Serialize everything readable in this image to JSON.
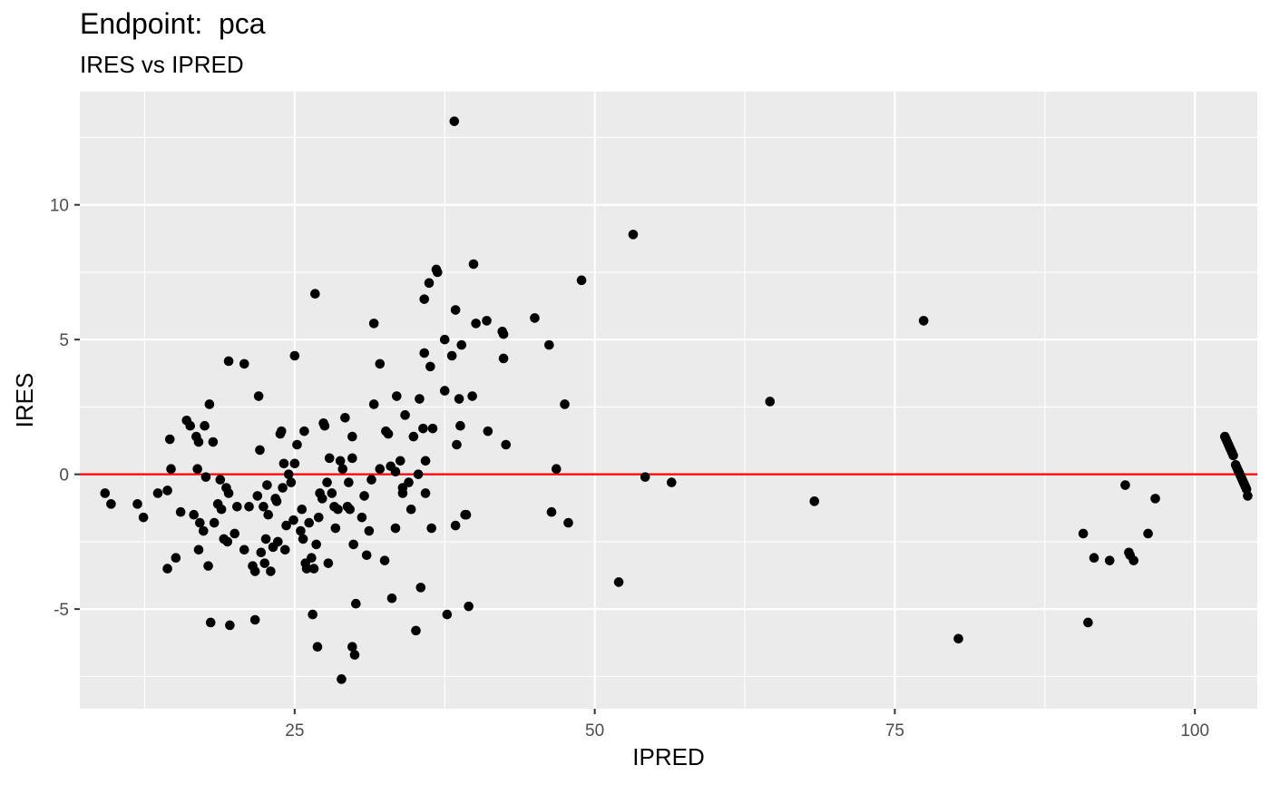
{
  "chart_data": {
    "type": "scatter",
    "title": "Endpoint:  pca",
    "subtitle": "IRES vs IPRED",
    "xlabel": "IPRED",
    "ylabel": "IRES",
    "xlim": [
      7.1,
      105.2
    ],
    "ylim": [
      -8.7,
      14.2
    ],
    "xticks": [
      25,
      50,
      75,
      100
    ],
    "xtick_labels": [
      "25",
      "50",
      "75",
      "100"
    ],
    "yticks": [
      -5,
      0,
      5,
      10
    ],
    "ytick_labels": [
      "-5",
      "0",
      "5",
      "10"
    ],
    "grid": true,
    "reference_line": {
      "y": 0,
      "color": "#ff0000"
    },
    "colors": {
      "panel": "#ebebeb",
      "grid": "#ffffff",
      "points": "#000000"
    },
    "points": [
      [
        9.2,
        -0.7
      ],
      [
        9.7,
        -1.1
      ],
      [
        11.9,
        -1.1
      ],
      [
        12.4,
        -1.6
      ],
      [
        13.6,
        -0.7
      ],
      [
        14.4,
        -0.6
      ],
      [
        14.6,
        1.3
      ],
      [
        14.7,
        0.2
      ],
      [
        14.4,
        -3.5
      ],
      [
        15.1,
        -3.1
      ],
      [
        15.5,
        -1.4
      ],
      [
        16.0,
        2.0
      ],
      [
        16.3,
        1.8
      ],
      [
        16.6,
        -1.5
      ],
      [
        16.8,
        1.4
      ],
      [
        17.0,
        1.2
      ],
      [
        16.9,
        0.2
      ],
      [
        17.0,
        -2.8
      ],
      [
        17.1,
        -1.8
      ],
      [
        17.4,
        -2.1
      ],
      [
        17.5,
        1.8
      ],
      [
        17.6,
        -0.1
      ],
      [
        17.9,
        2.6
      ],
      [
        17.8,
        -3.4
      ],
      [
        18.0,
        -5.5
      ],
      [
        18.3,
        -1.8
      ],
      [
        18.2,
        1.2
      ],
      [
        18.6,
        -1.1
      ],
      [
        18.8,
        -0.2
      ],
      [
        18.9,
        -1.3
      ],
      [
        19.1,
        -2.4
      ],
      [
        19.3,
        -0.5
      ],
      [
        19.4,
        -2.5
      ],
      [
        19.5,
        -0.7
      ],
      [
        19.6,
        -5.6
      ],
      [
        19.5,
        4.2
      ],
      [
        20.0,
        -2.2
      ],
      [
        20.2,
        -1.2
      ],
      [
        20.8,
        4.1
      ],
      [
        20.8,
        -2.8
      ],
      [
        21.2,
        -1.2
      ],
      [
        21.5,
        -3.4
      ],
      [
        21.7,
        -3.6
      ],
      [
        21.7,
        -5.4
      ],
      [
        21.9,
        -0.8
      ],
      [
        22.0,
        2.9
      ],
      [
        22.1,
        0.9
      ],
      [
        22.2,
        -2.9
      ],
      [
        22.4,
        -1.2
      ],
      [
        22.5,
        -3.3
      ],
      [
        22.6,
        -2.4
      ],
      [
        22.7,
        -0.4
      ],
      [
        22.8,
        -1.5
      ],
      [
        23.0,
        -3.6
      ],
      [
        23.2,
        -2.7
      ],
      [
        23.4,
        -0.9
      ],
      [
        23.5,
        -1.0
      ],
      [
        23.6,
        -2.5
      ],
      [
        23.8,
        1.5
      ],
      [
        23.9,
        1.6
      ],
      [
        24.0,
        -0.5
      ],
      [
        24.1,
        0.4
      ],
      [
        24.2,
        -2.8
      ],
      [
        24.3,
        -1.9
      ],
      [
        24.5,
        0.0
      ],
      [
        24.7,
        -0.3
      ],
      [
        24.9,
        -1.7
      ],
      [
        25.0,
        4.4
      ],
      [
        25.0,
        0.4
      ],
      [
        25.2,
        1.1
      ],
      [
        25.6,
        -1.3
      ],
      [
        25.5,
        -2.1
      ],
      [
        25.7,
        -2.4
      ],
      [
        25.8,
        1.6
      ],
      [
        25.9,
        -3.3
      ],
      [
        26.0,
        -3.5
      ],
      [
        26.2,
        -1.8
      ],
      [
        26.4,
        -3.1
      ],
      [
        26.6,
        -3.5
      ],
      [
        26.7,
        6.7
      ],
      [
        26.5,
        -5.2
      ],
      [
        26.8,
        -2.6
      ],
      [
        26.9,
        -6.4
      ],
      [
        27.0,
        -1.6
      ],
      [
        27.1,
        -0.7
      ],
      [
        27.3,
        -0.9
      ],
      [
        27.4,
        1.9
      ],
      [
        27.5,
        1.8
      ],
      [
        27.7,
        -0.3
      ],
      [
        27.8,
        -3.3
      ],
      [
        27.9,
        0.6
      ],
      [
        28.1,
        -0.7
      ],
      [
        28.3,
        -1.2
      ],
      [
        28.4,
        -2.0
      ],
      [
        28.6,
        -1.3
      ],
      [
        28.8,
        0.5
      ],
      [
        28.9,
        -7.6
      ],
      [
        29.0,
        0.2
      ],
      [
        29.2,
        2.1
      ],
      [
        29.4,
        -1.2
      ],
      [
        29.5,
        -0.3
      ],
      [
        29.6,
        -1.3
      ],
      [
        29.8,
        0.6
      ],
      [
        29.8,
        1.4
      ],
      [
        29.9,
        -2.6
      ],
      [
        29.8,
        -6.4
      ],
      [
        30.0,
        -6.7
      ],
      [
        30.1,
        -4.8
      ],
      [
        30.6,
        -1.6
      ],
      [
        30.8,
        -0.8
      ],
      [
        31.0,
        -3.0
      ],
      [
        31.2,
        -2.1
      ],
      [
        31.4,
        -0.2
      ],
      [
        31.6,
        2.6
      ],
      [
        31.6,
        5.6
      ],
      [
        32.1,
        0.2
      ],
      [
        32.1,
        4.1
      ],
      [
        32.5,
        -3.2
      ],
      [
        32.6,
        1.6
      ],
      [
        32.8,
        1.5
      ],
      [
        33.0,
        0.3
      ],
      [
        33.1,
        -4.6
      ],
      [
        33.4,
        -2.0
      ],
      [
        33.4,
        0.1
      ],
      [
        33.5,
        2.9
      ],
      [
        33.8,
        0.5
      ],
      [
        34.0,
        -0.5
      ],
      [
        34.0,
        -0.7
      ],
      [
        34.2,
        2.2
      ],
      [
        34.5,
        -0.3
      ],
      [
        34.7,
        -1.3
      ],
      [
        34.9,
        1.4
      ],
      [
        35.1,
        -5.8
      ],
      [
        35.3,
        0.0
      ],
      [
        35.4,
        2.8
      ],
      [
        35.5,
        -4.2
      ],
      [
        35.7,
        1.7
      ],
      [
        35.8,
        6.5
      ],
      [
        35.8,
        4.5
      ],
      [
        35.9,
        -0.7
      ],
      [
        35.9,
        0.5
      ],
      [
        36.2,
        7.1
      ],
      [
        36.3,
        4.0
      ],
      [
        36.4,
        -2.0
      ],
      [
        36.5,
        1.7
      ],
      [
        36.8,
        7.6
      ],
      [
        36.9,
        7.5
      ],
      [
        37.5,
        3.1
      ],
      [
        37.5,
        5.0
      ],
      [
        37.7,
        -5.2
      ],
      [
        38.1,
        4.4
      ],
      [
        38.3,
        13.1
      ],
      [
        38.4,
        -1.9
      ],
      [
        38.4,
        6.1
      ],
      [
        38.5,
        1.1
      ],
      [
        38.7,
        2.8
      ],
      [
        38.8,
        1.8
      ],
      [
        38.9,
        4.8
      ],
      [
        39.2,
        -1.5
      ],
      [
        39.3,
        -1.5
      ],
      [
        39.5,
        -4.9
      ],
      [
        39.8,
        2.9
      ],
      [
        39.9,
        7.8
      ],
      [
        40.1,
        5.6
      ],
      [
        41.0,
        5.7
      ],
      [
        41.1,
        1.6
      ],
      [
        42.3,
        5.3
      ],
      [
        42.4,
        5.2
      ],
      [
        42.4,
        4.3
      ],
      [
        42.6,
        1.1
      ],
      [
        45.0,
        5.8
      ],
      [
        46.2,
        4.8
      ],
      [
        46.4,
        -1.4
      ],
      [
        46.8,
        0.2
      ],
      [
        47.5,
        2.6
      ],
      [
        47.8,
        -1.8
      ],
      [
        48.9,
        7.2
      ],
      [
        52.0,
        -4.0
      ],
      [
        53.2,
        8.9
      ],
      [
        54.2,
        -0.1
      ],
      [
        56.4,
        -0.3
      ],
      [
        64.6,
        2.7
      ],
      [
        68.3,
        -1.0
      ],
      [
        77.4,
        5.7
      ],
      [
        80.3,
        -6.1
      ],
      [
        90.7,
        -2.2
      ],
      [
        91.1,
        -5.5
      ],
      [
        91.6,
        -3.1
      ],
      [
        92.9,
        -3.2
      ],
      [
        94.2,
        -0.4
      ],
      [
        94.5,
        -2.9
      ],
      [
        94.6,
        -3.0
      ],
      [
        94.9,
        -3.2
      ],
      [
        96.1,
        -2.2
      ],
      [
        96.7,
        -0.9
      ],
      [
        102.5,
        1.4
      ],
      [
        102.6,
        1.3
      ],
      [
        102.7,
        1.2
      ],
      [
        102.8,
        1.1
      ],
      [
        102.9,
        1.0
      ],
      [
        103.0,
        0.9
      ],
      [
        103.1,
        0.8
      ],
      [
        103.2,
        0.7
      ],
      [
        103.4,
        0.35
      ],
      [
        103.5,
        0.25
      ],
      [
        103.6,
        0.15
      ],
      [
        103.7,
        0.05
      ],
      [
        103.8,
        -0.05
      ],
      [
        103.9,
        -0.15
      ],
      [
        104.0,
        -0.25
      ],
      [
        104.1,
        -0.35
      ],
      [
        104.2,
        -0.45
      ],
      [
        104.3,
        -0.55
      ],
      [
        104.4,
        -0.8
      ]
    ]
  }
}
